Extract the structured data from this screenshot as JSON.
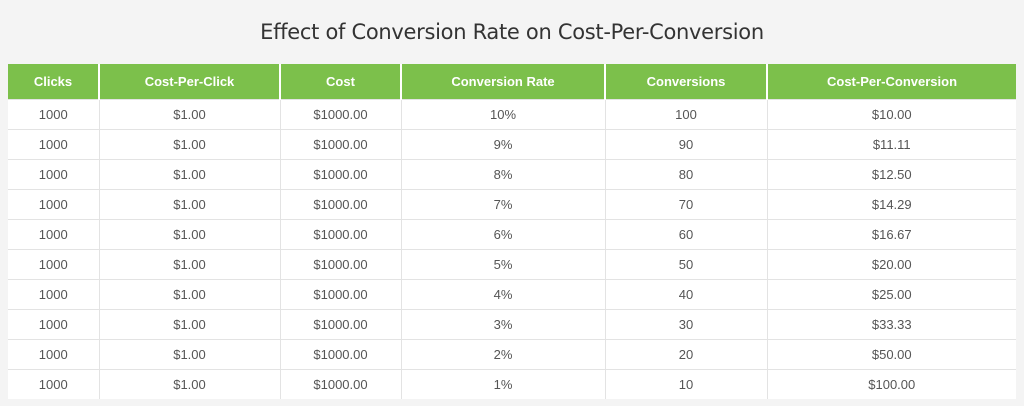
{
  "chart_data": {
    "type": "table",
    "title": "Effect of Conversion Rate on Cost-Per-Conversion",
    "columns": [
      "Clicks",
      "Cost-Per-Click",
      "Cost",
      "Conversion Rate",
      "Conversions",
      "Cost-Per-Conversion"
    ],
    "rows": [
      [
        "1000",
        "$1.00",
        "$1000.00",
        "10%",
        "100",
        "$10.00"
      ],
      [
        "1000",
        "$1.00",
        "$1000.00",
        "9%",
        "90",
        "$11.11"
      ],
      [
        "1000",
        "$1.00",
        "$1000.00",
        "8%",
        "80",
        "$12.50"
      ],
      [
        "1000",
        "$1.00",
        "$1000.00",
        "7%",
        "70",
        "$14.29"
      ],
      [
        "1000",
        "$1.00",
        "$1000.00",
        "6%",
        "60",
        "$16.67"
      ],
      [
        "1000",
        "$1.00",
        "$1000.00",
        "5%",
        "50",
        "$20.00"
      ],
      [
        "1000",
        "$1.00",
        "$1000.00",
        "4%",
        "40",
        "$25.00"
      ],
      [
        "1000",
        "$1.00",
        "$1000.00",
        "3%",
        "30",
        "$33.33"
      ],
      [
        "1000",
        "$1.00",
        "$1000.00",
        "2%",
        "20",
        "$50.00"
      ],
      [
        "1000",
        "$1.00",
        "$1000.00",
        "1%",
        "10",
        "$100.00"
      ]
    ]
  },
  "colors": {
    "header_bg": "#7cc04b",
    "header_text": "#ffffff",
    "page_bg": "#f4f4f4",
    "cell_bg": "#ffffff",
    "cell_text": "#555555"
  }
}
